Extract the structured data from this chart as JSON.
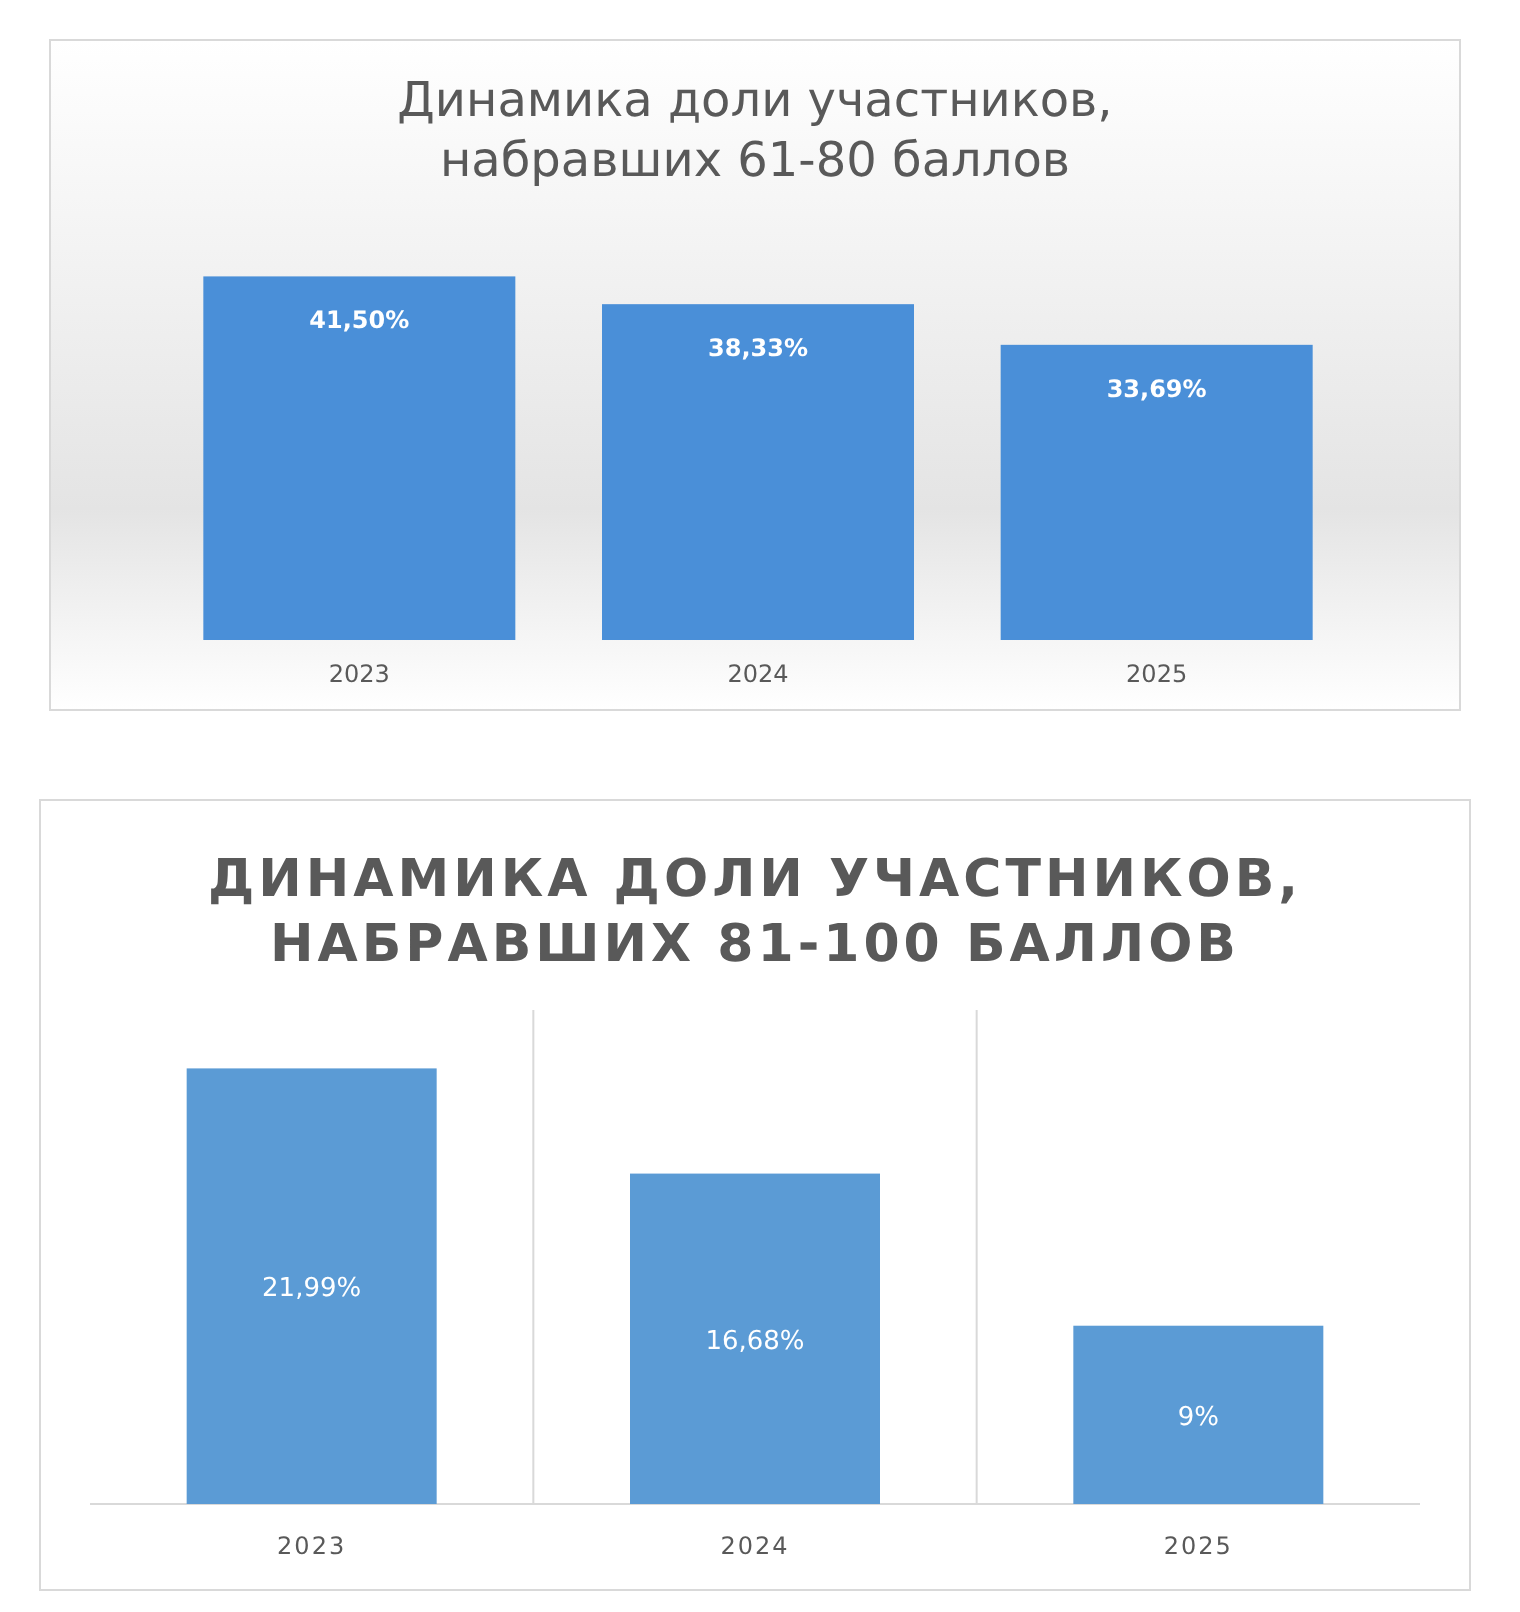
{
  "chart_data": [
    {
      "type": "bar",
      "title": "Динамика доли участников,\nнабравших 61-80 баллов",
      "categories": [
        "2023",
        "2024",
        "2025"
      ],
      "values": [
        41.5,
        38.33,
        33.69
      ],
      "color": "#4a8fd8",
      "value_labels": [
        "41,50%",
        "38,33%",
        "33,69%"
      ]
    },
    {
      "type": "bar",
      "title": "ДИНАМИКА ДОЛИ УЧАСТНИКОВ,\nНАБРАВШИХ 81-100 БАЛЛОВ",
      "categories": [
        "2023",
        "2024",
        "2025"
      ],
      "values": [
        21.99,
        16.68,
        9
      ],
      "color": "#5b9bd5",
      "value_labels": [
        "21,99%",
        "16,68%",
        "9%"
      ]
    }
  ]
}
